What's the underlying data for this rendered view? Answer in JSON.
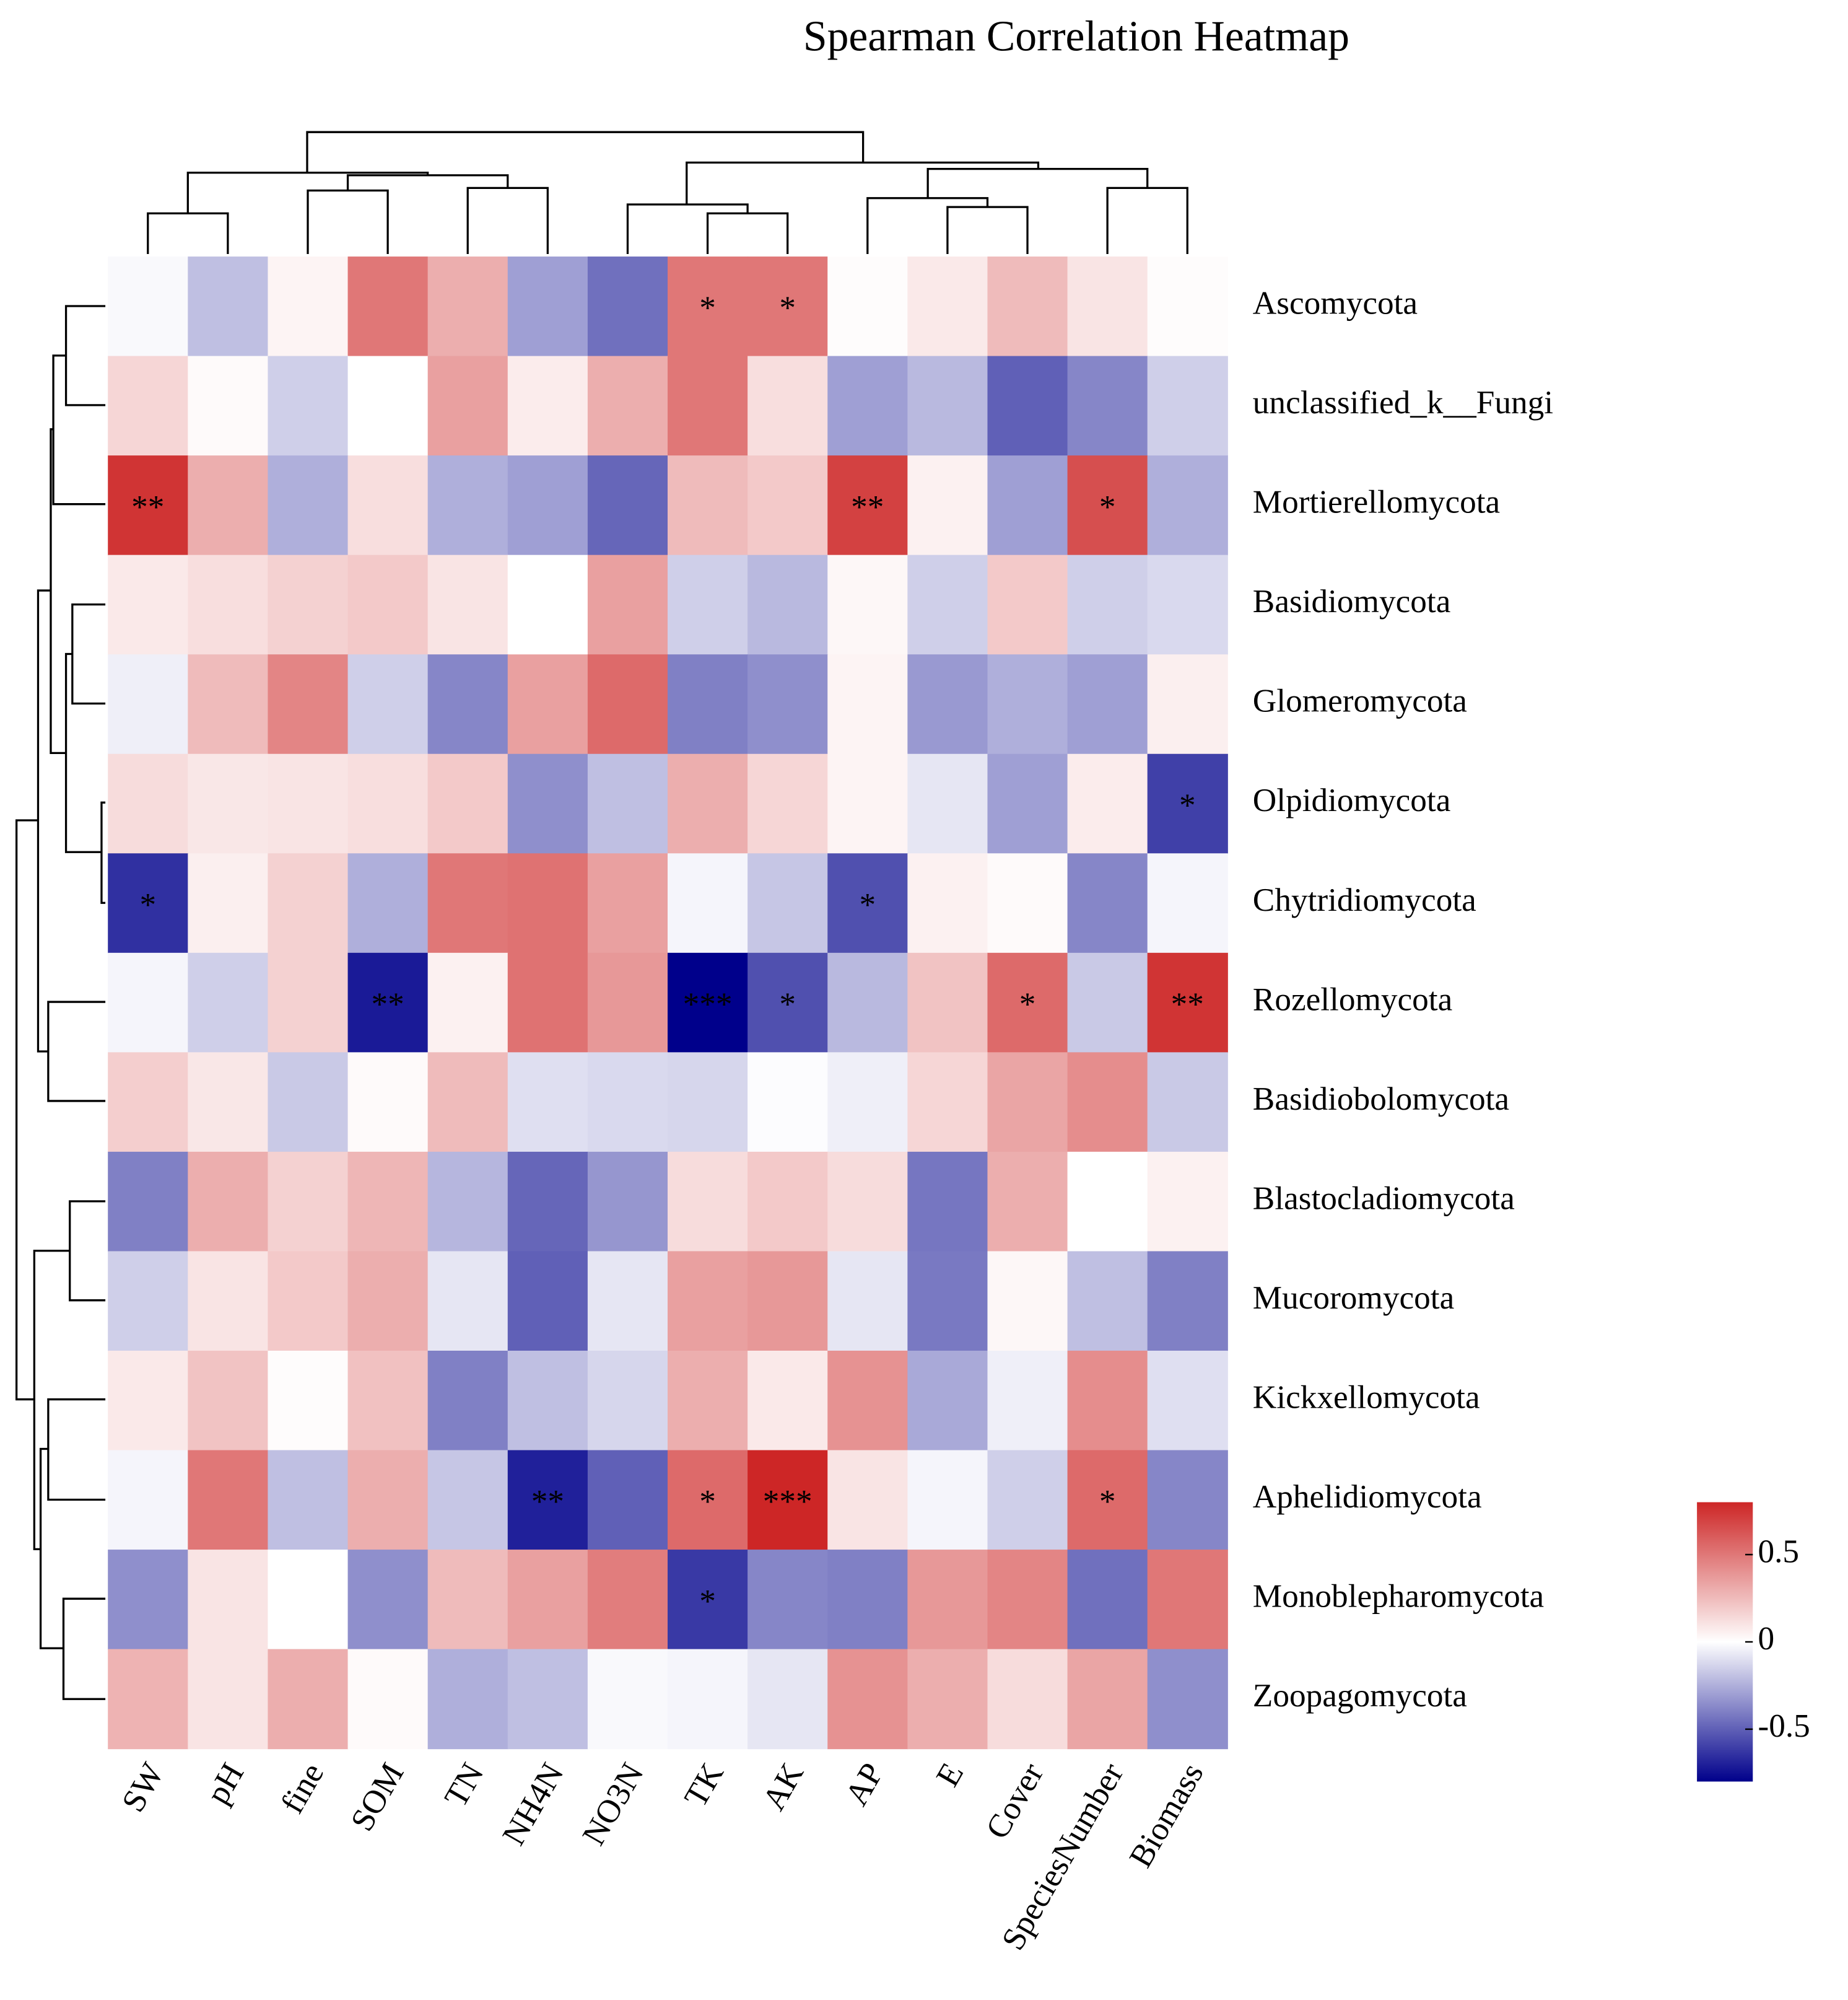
{
  "chart_data": {
    "type": "heatmap",
    "title": "Spearman Correlation Heatmap",
    "columns": [
      "SW",
      "pH",
      "fine",
      "SOM",
      "TN",
      "NH4N",
      "NO3N",
      "TK",
      "AK",
      "AP",
      "E",
      "Cover",
      "SpeciesNumber",
      "Biomass"
    ],
    "rows": [
      "Ascomycota",
      "unclassified_k__Fungi",
      "Mortierellomycota",
      "Basidiomycota",
      "Glomeromycota",
      "Olpidiomycota",
      "Chytridiomycota",
      "Rozellomycota",
      "Basidiobolomycota",
      "Blastocladiomycota",
      "Mucoromycota",
      "Kickxellomycota",
      "Aphelidiomycota",
      "Monoblepharomycota",
      "Zoopagomycota"
    ],
    "values": [
      [
        -0.02,
        -0.2,
        0.04,
        0.5,
        0.3,
        -0.3,
        -0.45,
        0.5,
        0.5,
        0.01,
        0.08,
        0.25,
        0.1,
        0.01
      ],
      [
        0.15,
        0.02,
        -0.15,
        0,
        0.35,
        0.07,
        0.3,
        0.5,
        0.12,
        -0.3,
        -0.22,
        -0.5,
        -0.38,
        -0.15
      ],
      [
        0.75,
        0.3,
        -0.25,
        0.12,
        -0.25,
        -0.3,
        -0.48,
        0.25,
        0.2,
        0.7,
        0.05,
        -0.3,
        0.65,
        -0.25
      ],
      [
        0.08,
        0.12,
        0.17,
        0.2,
        0.1,
        0,
        0.35,
        -0.15,
        -0.22,
        0.03,
        -0.15,
        0.2,
        -0.15,
        -0.12
      ],
      [
        -0.05,
        0.25,
        0.45,
        -0.15,
        -0.38,
        0.35,
        0.55,
        -0.4,
        -0.35,
        0.04,
        -0.32,
        -0.25,
        -0.3,
        0.06
      ],
      [
        0.13,
        0.09,
        0.1,
        0.12,
        0.2,
        -0.35,
        -0.2,
        0.3,
        0.15,
        0.04,
        -0.08,
        -0.3,
        0.07,
        -0.6
      ],
      [
        -0.65,
        0.06,
        0.17,
        -0.25,
        0.5,
        0.52,
        0.35,
        -0.03,
        -0.18,
        -0.55,
        0.05,
        0.02,
        -0.38,
        -0.03
      ],
      [
        -0.03,
        -0.15,
        0.17,
        -0.72,
        0.05,
        0.52,
        0.38,
        -0.8,
        -0.55,
        -0.22,
        0.22,
        0.55,
        -0.17,
        0.75
      ],
      [
        0.18,
        0.09,
        -0.17,
        0.02,
        0.25,
        -0.1,
        -0.12,
        -0.13,
        -0.01,
        -0.05,
        0.15,
        0.33,
        0.42,
        -0.17
      ],
      [
        -0.4,
        0.3,
        0.17,
        0.27,
        -0.23,
        -0.48,
        -0.33,
        0.13,
        0.2,
        0.13,
        -0.43,
        0.3,
        0,
        0.05
      ],
      [
        -0.15,
        0.1,
        0.2,
        0.3,
        -0.08,
        -0.5,
        -0.08,
        0.35,
        0.38,
        -0.08,
        -0.42,
        0.03,
        -0.2,
        -0.4
      ],
      [
        0.08,
        0.22,
        0.01,
        0.23,
        -0.4,
        -0.2,
        -0.13,
        0.3,
        0.08,
        0.4,
        -0.27,
        -0.05,
        0.42,
        -0.1
      ],
      [
        -0.03,
        0.5,
        -0.2,
        0.3,
        -0.18,
        -0.7,
        -0.5,
        0.55,
        0.8,
        0.1,
        -0.03,
        -0.15,
        0.55,
        -0.38
      ],
      [
        -0.35,
        0.1,
        0,
        -0.35,
        0.25,
        0.35,
        0.48,
        -0.62,
        -0.38,
        -0.4,
        0.38,
        0.45,
        -0.45,
        0.5
      ],
      [
        0.28,
        0.1,
        0.3,
        0.02,
        -0.25,
        -0.2,
        -0.02,
        -0.03,
        -0.08,
        0.4,
        0.3,
        0.13,
        0.33,
        -0.35
      ]
    ],
    "annotations": [
      [
        null,
        null,
        null,
        null,
        null,
        null,
        null,
        "*",
        "*",
        null,
        null,
        null,
        null,
        null
      ],
      [
        null,
        null,
        null,
        null,
        null,
        null,
        null,
        null,
        null,
        null,
        null,
        null,
        null,
        null
      ],
      [
        "**",
        null,
        null,
        null,
        null,
        null,
        null,
        null,
        null,
        "**",
        null,
        null,
        "*",
        null
      ],
      [
        null,
        null,
        null,
        null,
        null,
        null,
        null,
        null,
        null,
        null,
        null,
        null,
        null,
        null
      ],
      [
        null,
        null,
        null,
        null,
        null,
        null,
        null,
        null,
        null,
        null,
        null,
        null,
        null,
        null
      ],
      [
        null,
        null,
        null,
        null,
        null,
        null,
        null,
        null,
        null,
        null,
        null,
        null,
        null,
        "*"
      ],
      [
        "*",
        null,
        null,
        null,
        null,
        null,
        null,
        null,
        null,
        "*",
        null,
        null,
        null,
        null
      ],
      [
        null,
        null,
        null,
        "**",
        null,
        null,
        null,
        "***",
        "*",
        null,
        null,
        "*",
        null,
        "**"
      ],
      [
        null,
        null,
        null,
        null,
        null,
        null,
        null,
        null,
        null,
        null,
        null,
        null,
        null,
        null
      ],
      [
        null,
        null,
        null,
        null,
        null,
        null,
        null,
        null,
        null,
        null,
        null,
        null,
        null,
        null
      ],
      [
        null,
        null,
        null,
        null,
        null,
        null,
        null,
        null,
        null,
        null,
        null,
        null,
        null,
        null
      ],
      [
        null,
        null,
        null,
        null,
        null,
        null,
        null,
        null,
        null,
        null,
        null,
        null,
        null,
        null
      ],
      [
        null,
        null,
        null,
        null,
        null,
        "**",
        null,
        "*",
        "***",
        null,
        null,
        null,
        "*",
        null
      ],
      [
        null,
        null,
        null,
        null,
        null,
        null,
        null,
        "*",
        null,
        null,
        null,
        null,
        null,
        null
      ],
      [
        null,
        null,
        null,
        null,
        null,
        null,
        null,
        null,
        null,
        null,
        null,
        null,
        null,
        null
      ]
    ],
    "colors": [
      "#00008B",
      "#FFFFFF",
      "#CD2626"
    ],
    "clim": [
      -0.8,
      0.8
    ],
    "cticks": [
      0.5,
      0,
      -0.5
    ]
  }
}
